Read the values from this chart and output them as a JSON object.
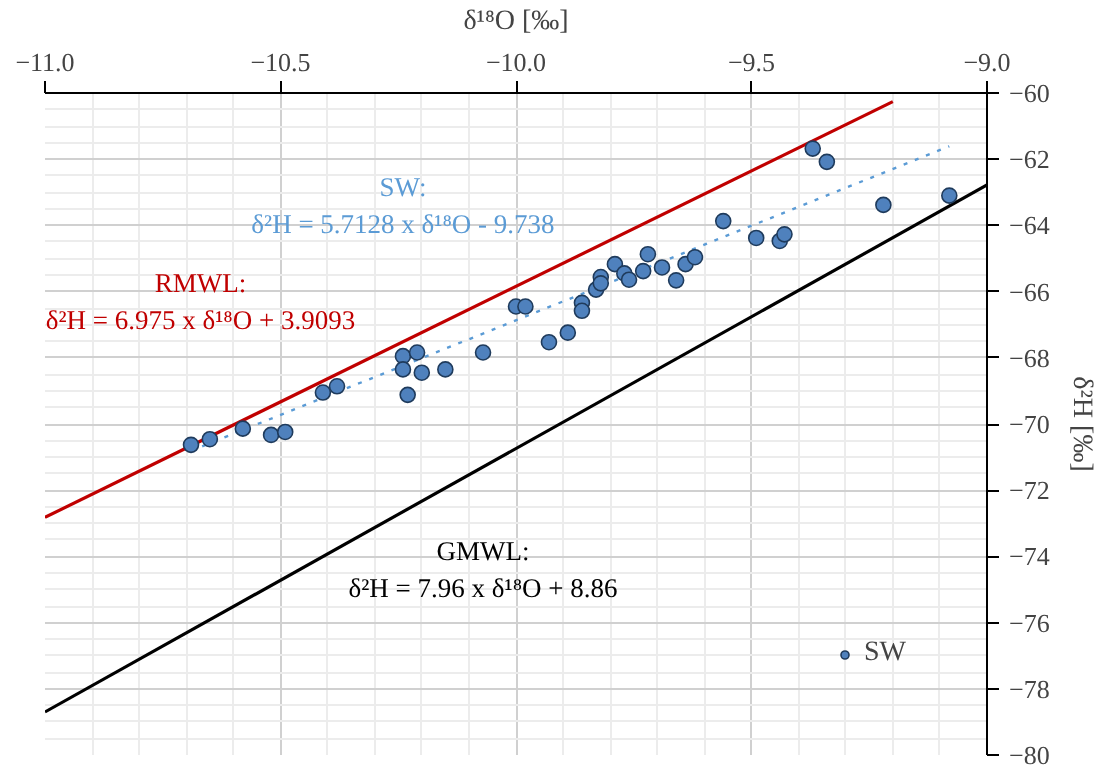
{
  "chart_data": {
    "type": "scatter",
    "xlabel": "δ¹⁸O [‰]",
    "ylabel": "δ²H [‰]",
    "xlim": [
      -11,
      -9
    ],
    "ylim": [
      -80,
      -60
    ],
    "xticks": [
      {
        "value": -11,
        "label": "−11.0"
      },
      {
        "value": -10.5,
        "label": "−10.5"
      },
      {
        "value": -10,
        "label": "−10.0"
      },
      {
        "value": -9.5,
        "label": "−9.5"
      },
      {
        "value": -9,
        "label": "−9.0"
      }
    ],
    "yticks": [
      {
        "value": -80,
        "label": "−80"
      },
      {
        "value": -78,
        "label": "−78"
      },
      {
        "value": -76,
        "label": "−76"
      },
      {
        "value": -74,
        "label": "−74"
      },
      {
        "value": -72,
        "label": "−72"
      },
      {
        "value": -70,
        "label": "−70"
      },
      {
        "value": -68,
        "label": "−68"
      },
      {
        "value": -66,
        "label": "−66"
      },
      {
        "value": -64,
        "label": "−64"
      },
      {
        "value": -62,
        "label": "−62"
      },
      {
        "value": -60,
        "label": "−60"
      }
    ],
    "grid": true,
    "legend": "bottom right",
    "series": [
      {
        "type": "line",
        "color": "#c00000",
        "x": [
          -11,
          -9.2
        ],
        "values": [
          -72.82,
          -60.26
        ]
      },
      {
        "type": "line",
        "color": "#5b9bd5",
        "line_style": "dotted",
        "x": [
          -10.69,
          -9.08
        ],
        "values": [
          -70.81,
          -61.61
        ]
      },
      {
        "type": "line",
        "color": "#000000",
        "x": [
          -11,
          -9
        ],
        "values": [
          -78.7,
          -62.78
        ]
      },
      {
        "name": "SW",
        "color": "#4f81bd",
        "marker": "circle",
        "x": [
          -10.69,
          -10.65,
          -10.58,
          -10.52,
          -10.49,
          -10.41,
          -10.38,
          -10.24,
          -10.21,
          -10.24,
          -10.2,
          -10.23,
          -10.15,
          -10.07,
          -10.0,
          -9.98,
          -9.93,
          -9.89,
          -9.86,
          -9.86,
          -9.83,
          -9.82,
          -9.82,
          -9.79,
          -9.77,
          -9.76,
          -9.73,
          -9.72,
          -9.69,
          -9.66,
          -9.64,
          -9.62,
          -9.56,
          -9.49,
          -9.44,
          -9.43,
          -9.37,
          -9.34,
          -9.22,
          -9.08
        ],
        "values": [
          -70.63,
          -70.46,
          -70.14,
          -70.33,
          -70.24,
          -69.05,
          -68.86,
          -67.95,
          -67.84,
          -68.35,
          -68.45,
          -69.12,
          -68.35,
          -67.84,
          -66.45,
          -66.45,
          -67.53,
          -67.24,
          -66.34,
          -66.58,
          -65.94,
          -65.56,
          -65.75,
          -65.17,
          -65.45,
          -65.64,
          -65.38,
          -64.87,
          -65.27,
          -65.66,
          -65.17,
          -64.96,
          -63.87,
          -64.38,
          -64.47,
          -64.27,
          -61.68,
          -62.08,
          -63.38,
          -63.1
        ]
      }
    ],
    "annotations": [
      "RMWL:\nδ²H = 6.975 x δ¹⁸O + 3.9093",
      "SW:\nδ²H = 5.7128 x δ¹⁸O - 9.738",
      "GMWL:\nδ²H = 7.96 x δ¹⁸O + 8.86"
    ]
  }
}
